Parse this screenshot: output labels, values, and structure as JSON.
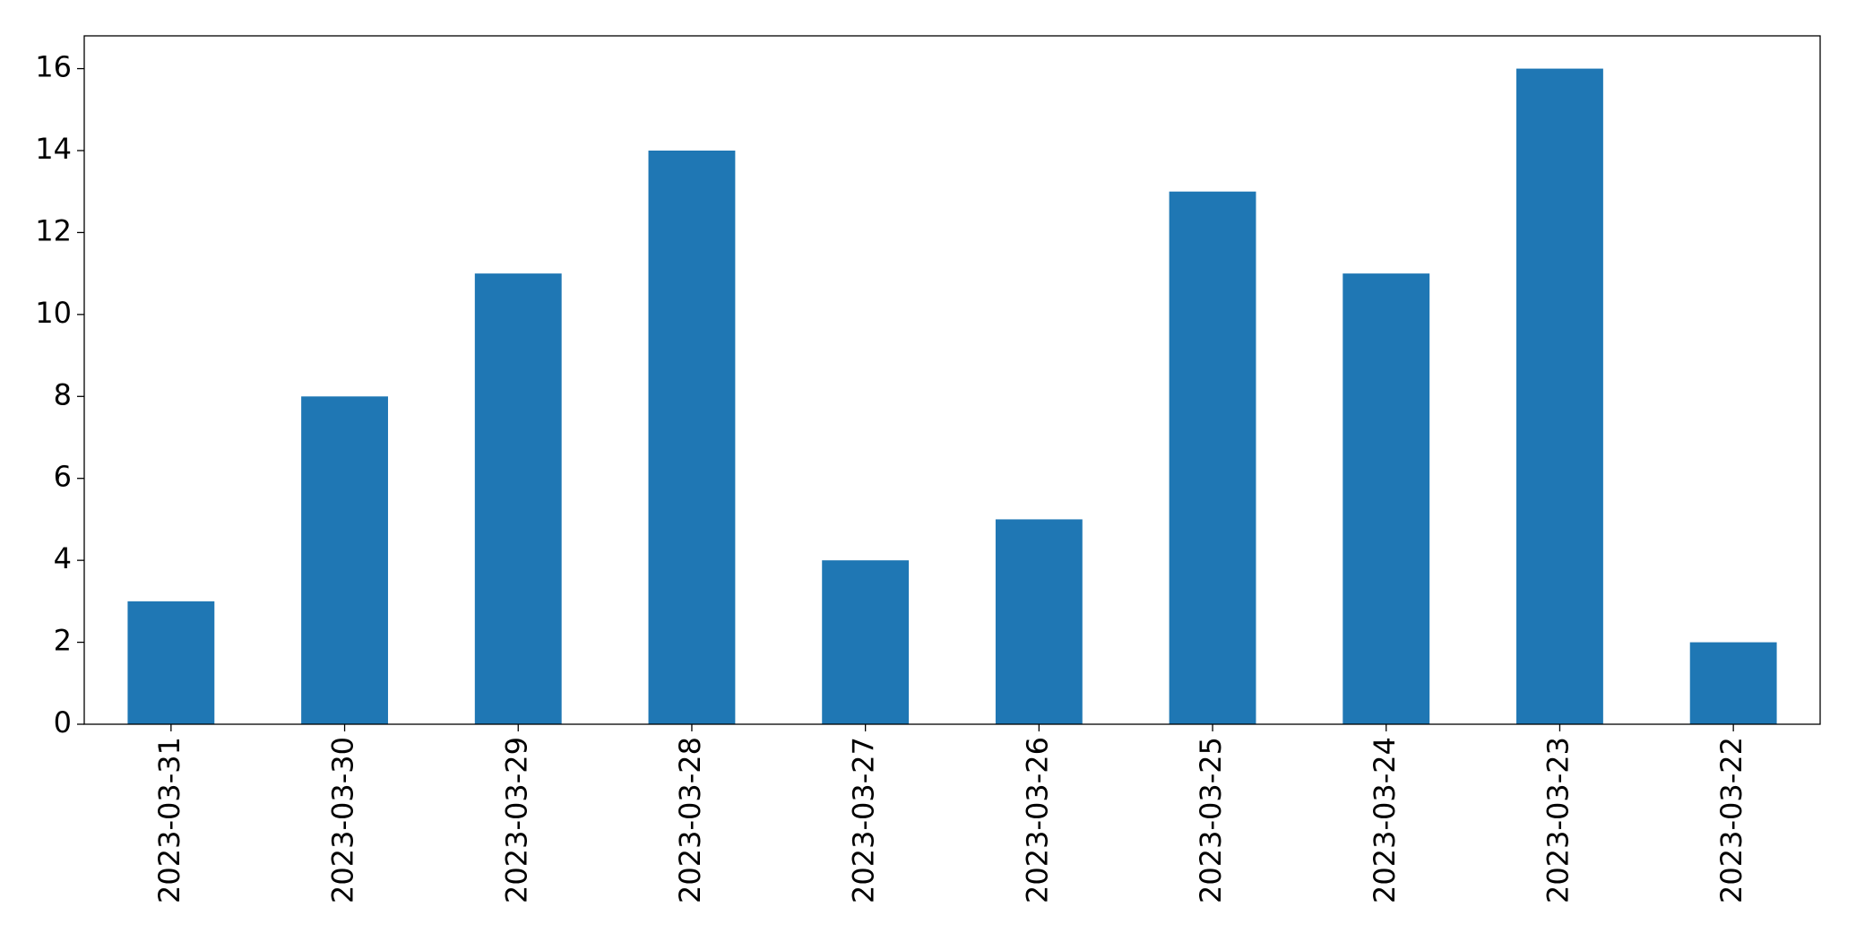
{
  "chart_data": {
    "type": "bar",
    "categories": [
      "2023-03-31",
      "2023-03-30",
      "2023-03-29",
      "2023-03-28",
      "2023-03-27",
      "2023-03-26",
      "2023-03-25",
      "2023-03-24",
      "2023-03-23",
      "2023-03-22"
    ],
    "values": [
      3,
      8,
      11,
      14,
      4,
      5,
      13,
      11,
      16,
      2
    ],
    "color": "#1f77b4",
    "ylim": [
      0,
      16.8
    ],
    "yticks": [
      0,
      2,
      4,
      6,
      8,
      10,
      12,
      14,
      16
    ],
    "grid": false
  }
}
